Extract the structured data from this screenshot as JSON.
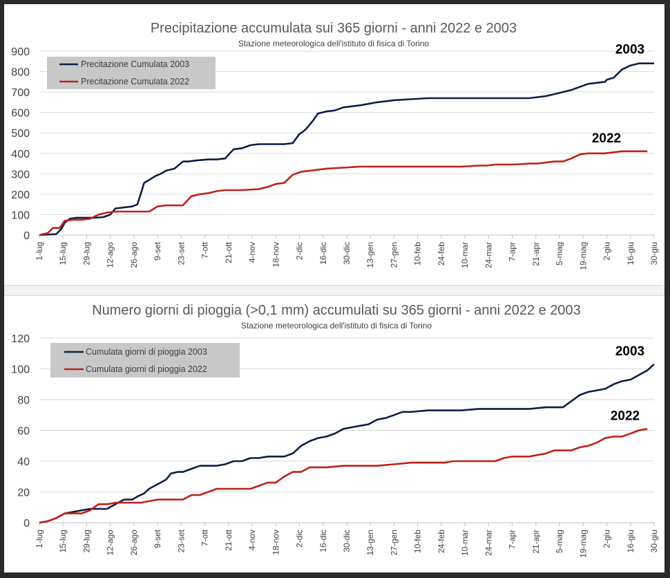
{
  "colors": {
    "series_2003": "#0d1f45",
    "series_2022": "#c0201c",
    "legend_bg": "#c8c8c8",
    "grid": "#d9d9d9"
  },
  "chart_data": [
    {
      "type": "line",
      "title": "Precipitazione accumulata sui 365 giorni - anni 2022 e 2003",
      "subtitle": "Stazione meteorologica dell'istituto di fisica di Torino",
      "xlabel": "",
      "ylabel": "",
      "ylim": [
        0,
        900
      ],
      "yticks": [
        0,
        100,
        200,
        300,
        400,
        500,
        600,
        700,
        800,
        900
      ],
      "grid": true,
      "legend_position": "top-left",
      "categories": [
        "1-lug",
        "15-lug",
        "29-lug",
        "12-ago",
        "26-ago",
        "9-set",
        "23-set",
        "7-ott",
        "21-ott",
        "4-nov",
        "18-nov",
        "2-dic",
        "16-dic",
        "30-dic",
        "13-gen",
        "27-gen",
        "10-feb",
        "24-feb",
        "10-mar",
        "24-mar",
        "7-apr",
        "21-apr",
        "5-mag",
        "19-mag",
        "2-giu",
        "16-giu",
        "30-giu"
      ],
      "x_unit": "day index from 1-lug (0-364)",
      "series": [
        {
          "name": "Precitazione Cumulata 2003",
          "end_label": "2003",
          "x": [
            0,
            10,
            13,
            15,
            18,
            22,
            28,
            33,
            38,
            42,
            45,
            50,
            55,
            58,
            60,
            62,
            65,
            67,
            69,
            72,
            75,
            80,
            85,
            88,
            93,
            100,
            105,
            110,
            115,
            120,
            125,
            130,
            135,
            140,
            145,
            150,
            154,
            156,
            158,
            160,
            162,
            165,
            170,
            175,
            180,
            185,
            190,
            200,
            210,
            220,
            230,
            240,
            250,
            260,
            270,
            275,
            280,
            285,
            290,
            295,
            300,
            305,
            310,
            315,
            320,
            325,
            330,
            335,
            336,
            340,
            345,
            350,
            355,
            360,
            364
          ],
          "values": [
            0,
            5,
            30,
            60,
            80,
            85,
            85,
            85,
            88,
            100,
            130,
            135,
            140,
            150,
            200,
            255,
            270,
            280,
            290,
            300,
            315,
            325,
            360,
            360,
            365,
            370,
            370,
            375,
            420,
            425,
            440,
            445,
            445,
            445,
            445,
            450,
            495,
            505,
            520,
            540,
            560,
            595,
            605,
            610,
            625,
            630,
            635,
            650,
            660,
            665,
            670,
            670,
            670,
            670,
            670,
            670,
            670,
            670,
            670,
            675,
            680,
            690,
            700,
            710,
            725,
            740,
            745,
            750,
            760,
            770,
            810,
            830,
            840,
            840,
            840
          ]
        },
        {
          "name": "Precitazione Cumulata 2022",
          "end_label": "2022",
          "x": [
            0,
            5,
            8,
            12,
            15,
            20,
            25,
            30,
            35,
            40,
            45,
            50,
            55,
            60,
            62,
            65,
            70,
            75,
            80,
            85,
            90,
            95,
            100,
            105,
            110,
            120,
            130,
            135,
            140,
            145,
            150,
            155,
            160,
            165,
            170,
            180,
            190,
            200,
            210,
            220,
            230,
            240,
            250,
            260,
            265,
            270,
            280,
            290,
            295,
            300,
            305,
            310,
            315,
            320,
            325,
            330,
            335,
            340,
            345,
            350,
            355,
            360
          ],
          "values": [
            0,
            10,
            35,
            35,
            70,
            75,
            75,
            80,
            100,
            110,
            115,
            115,
            115,
            115,
            115,
            115,
            140,
            145,
            145,
            145,
            190,
            200,
            205,
            215,
            220,
            220,
            225,
            235,
            250,
            255,
            295,
            310,
            315,
            320,
            325,
            330,
            335,
            335,
            335,
            335,
            335,
            335,
            335,
            340,
            340,
            345,
            345,
            350,
            350,
            355,
            360,
            360,
            375,
            395,
            400,
            400,
            400,
            405,
            410,
            410,
            410,
            410
          ]
        }
      ]
    },
    {
      "type": "line",
      "title": "Numero giorni di pioggia (>0,1 mm) accumulati su 365 giorni - anni 2022 e 2003",
      "subtitle": "Stazione meteorologica dell'istituto di fisica di Torino",
      "xlabel": "",
      "ylabel": "",
      "ylim": [
        0,
        120
      ],
      "yticks": [
        0,
        20,
        40,
        60,
        80,
        100,
        120
      ],
      "grid": true,
      "legend_position": "top-left",
      "categories": [
        "1-lug",
        "15-lug",
        "29-lug",
        "12-ago",
        "26-ago",
        "9-set",
        "23-set",
        "7-ott",
        "21-ott",
        "4-nov",
        "18-nov",
        "2-dic",
        "16-dic",
        "30-dic",
        "13-gen",
        "27-gen",
        "10-feb",
        "24-feb",
        "10-mar",
        "24-mar",
        "7-apr",
        "21-apr",
        "5-mag",
        "19-mag",
        "2-giu",
        "16-giu",
        "30-giu"
      ],
      "x_unit": "day index from 1-lug (0-364)",
      "series": [
        {
          "name": "Cumulata giorni di pioggia 2003",
          "end_label": "2003",
          "x": [
            0,
            5,
            10,
            15,
            20,
            25,
            30,
            35,
            40,
            45,
            50,
            55,
            58,
            62,
            65,
            70,
            75,
            78,
            82,
            85,
            90,
            95,
            100,
            105,
            110,
            115,
            120,
            125,
            130,
            135,
            140,
            145,
            150,
            155,
            160,
            165,
            170,
            175,
            180,
            185,
            190,
            195,
            200,
            205,
            210,
            215,
            220,
            230,
            240,
            250,
            260,
            270,
            280,
            290,
            300,
            305,
            310,
            315,
            320,
            325,
            330,
            335,
            340,
            345,
            350,
            355,
            360,
            364
          ],
          "values": [
            0,
            1,
            3,
            6,
            7,
            8,
            9,
            9,
            9,
            12,
            15,
            15,
            17,
            19,
            22,
            25,
            28,
            32,
            33,
            33,
            35,
            37,
            37,
            37,
            38,
            40,
            40,
            42,
            42,
            43,
            43,
            43,
            45,
            50,
            53,
            55,
            56,
            58,
            61,
            62,
            63,
            64,
            67,
            68,
            70,
            72,
            72,
            73,
            73,
            73,
            74,
            74,
            74,
            74,
            75,
            75,
            75,
            79,
            83,
            85,
            86,
            87,
            90,
            92,
            93,
            96,
            99,
            103
          ]
        },
        {
          "name": "Cumulata giorni di pioggia 2022",
          "end_label": "2022",
          "x": [
            0,
            5,
            10,
            15,
            20,
            25,
            30,
            35,
            40,
            45,
            50,
            55,
            60,
            65,
            70,
            75,
            80,
            85,
            90,
            95,
            100,
            105,
            110,
            115,
            120,
            125,
            130,
            135,
            140,
            145,
            150,
            155,
            160,
            165,
            170,
            180,
            190,
            200,
            210,
            220,
            230,
            240,
            245,
            250,
            260,
            270,
            275,
            280,
            290,
            300,
            305,
            310,
            315,
            320,
            325,
            330,
            335,
            340,
            345,
            350,
            355,
            360
          ],
          "values": [
            0,
            1,
            3,
            6,
            6,
            6,
            8,
            12,
            12,
            13,
            13,
            13,
            13,
            14,
            15,
            15,
            15,
            15,
            18,
            18,
            20,
            22,
            22,
            22,
            22,
            22,
            24,
            26,
            26,
            30,
            33,
            33,
            36,
            36,
            36,
            37,
            37,
            37,
            38,
            39,
            39,
            39,
            40,
            40,
            40,
            40,
            42,
            43,
            43,
            45,
            47,
            47,
            47,
            49,
            50,
            52,
            55,
            56,
            56,
            58,
            60,
            61
          ]
        }
      ]
    }
  ]
}
